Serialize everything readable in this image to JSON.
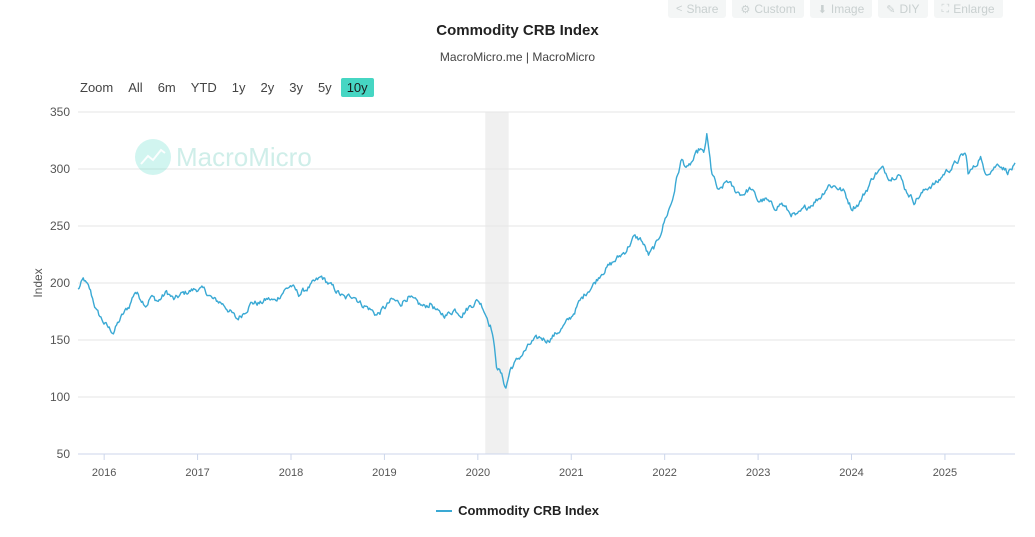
{
  "toolbar": {
    "share_label": "Share",
    "custom_label": "Custom",
    "image_label": "Image",
    "diy_label": "DIY",
    "enlarge_label": "Enlarge"
  },
  "zoom": {
    "label": "Zoom",
    "buttons": [
      "All",
      "6m",
      "YTD",
      "1y",
      "2y",
      "3y",
      "5y",
      "10y"
    ],
    "active": "10y"
  },
  "watermark": "MacroMicro",
  "colors": {
    "series": "#3aa9d4",
    "accent": "#46d6c3",
    "recession": "#f0f0f0",
    "grid": "#e6e6e6"
  },
  "chart_data": {
    "type": "line",
    "title": "Commodity CRB Index",
    "subtitle": "MacroMicro.me | MacroMicro",
    "xlabel": "",
    "ylabel": "Index",
    "xlim": [
      2015.72,
      2025.75
    ],
    "ylim": [
      50,
      350
    ],
    "yticks": [
      50,
      100,
      150,
      200,
      250,
      300,
      350
    ],
    "xticks": [
      {
        "label": "2016",
        "value": 2016
      },
      {
        "label": "2017",
        "value": 2017
      },
      {
        "label": "2018",
        "value": 2018
      },
      {
        "label": "2019",
        "value": 2019
      },
      {
        "label": "2020",
        "value": 2020
      },
      {
        "label": "2021",
        "value": 2021
      },
      {
        "label": "2022",
        "value": 2022
      },
      {
        "label": "2023",
        "value": 2023
      },
      {
        "label": "2024",
        "value": 2024
      },
      {
        "label": "2025",
        "value": 2025
      }
    ],
    "shaded_regions": [
      [
        2020.08,
        2020.33
      ]
    ],
    "legend": "bottom-center",
    "grid": true,
    "series": [
      {
        "name": "Commodity CRB Index",
        "x": [
          2015.72,
          2015.78,
          2015.85,
          2015.92,
          2016.0,
          2016.05,
          2016.1,
          2016.15,
          2016.2,
          2016.27,
          2016.33,
          2016.4,
          2016.45,
          2016.5,
          2016.58,
          2016.67,
          2016.75,
          2016.83,
          2016.92,
          2017.0,
          2017.08,
          2017.17,
          2017.25,
          2017.33,
          2017.42,
          2017.47,
          2017.5,
          2017.58,
          2017.67,
          2017.75,
          2017.83,
          2017.92,
          2018.0,
          2018.08,
          2018.17,
          2018.25,
          2018.33,
          2018.42,
          2018.5,
          2018.58,
          2018.67,
          2018.75,
          2018.83,
          2018.92,
          2019.0,
          2019.08,
          2019.17,
          2019.25,
          2019.33,
          2019.42,
          2019.5,
          2019.58,
          2019.67,
          2019.75,
          2019.83,
          2019.92,
          2020.0,
          2020.05,
          2020.1,
          2020.15,
          2020.2,
          2020.25,
          2020.3,
          2020.35,
          2020.42,
          2020.5,
          2020.58,
          2020.67,
          2020.75,
          2020.83,
          2020.92,
          2021.0,
          2021.08,
          2021.17,
          2021.25,
          2021.33,
          2021.42,
          2021.5,
          2021.58,
          2021.67,
          2021.75,
          2021.83,
          2021.92,
          2022.0,
          2022.08,
          2022.13,
          2022.18,
          2022.25,
          2022.33,
          2022.38,
          2022.42,
          2022.45,
          2022.5,
          2022.55,
          2022.58,
          2022.67,
          2022.75,
          2022.83,
          2022.92,
          2023.0,
          2023.08,
          2023.17,
          2023.25,
          2023.33,
          2023.42,
          2023.5,
          2023.58,
          2023.67,
          2023.75,
          2023.83,
          2023.92,
          2024.0,
          2024.08,
          2024.17,
          2024.25,
          2024.33,
          2024.42,
          2024.5,
          2024.58,
          2024.67,
          2024.75,
          2024.83,
          2024.92,
          2025.0,
          2025.08,
          2025.17,
          2025.22,
          2025.25,
          2025.33,
          2025.38,
          2025.42,
          2025.5,
          2025.58,
          2025.67,
          2025.75
        ],
        "y": [
          194,
          203,
          193,
          175,
          165,
          160,
          157,
          165,
          172,
          180,
          193,
          186,
          181,
          188,
          184,
          192,
          185,
          190,
          193,
          195,
          193,
          185,
          183,
          177,
          168,
          172,
          175,
          183,
          182,
          186,
          184,
          193,
          198,
          190,
          195,
          200,
          205,
          198,
          192,
          186,
          190,
          182,
          178,
          172,
          178,
          185,
          182,
          188,
          183,
          179,
          182,
          173,
          172,
          177,
          173,
          180,
          185,
          180,
          170,
          160,
          128,
          120,
          108,
          125,
          132,
          140,
          148,
          152,
          150,
          155,
          162,
          170,
          182,
          193,
          200,
          210,
          216,
          222,
          228,
          240,
          238,
          224,
          235,
          255,
          272,
          292,
          308,
          300,
          311,
          318,
          312,
          330,
          298,
          286,
          279,
          290,
          281,
          278,
          283,
          272,
          273,
          266,
          270,
          262,
          258,
          265,
          270,
          276,
          286,
          285,
          280,
          266,
          270,
          283,
          296,
          300,
          292,
          297,
          282,
          272,
          278,
          285,
          288,
          297,
          302,
          310,
          314,
          296,
          303,
          312,
          296,
          300,
          305,
          298,
          302
        ]
      }
    ]
  }
}
